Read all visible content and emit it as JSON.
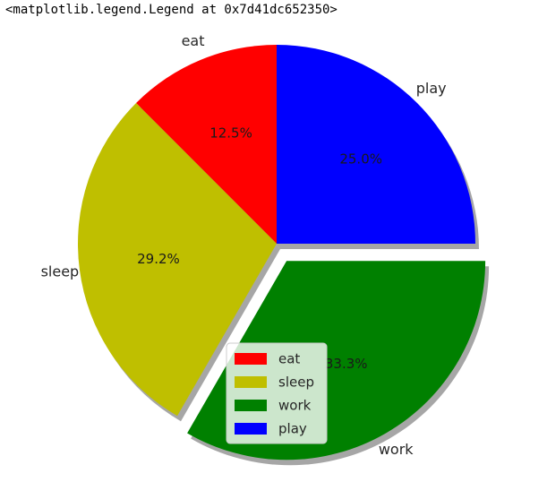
{
  "output_text": "<matplotlib.legend.Legend at 0x7d41dc652350>",
  "chart_data": {
    "type": "pie",
    "categories": [
      "eat",
      "sleep",
      "work",
      "play"
    ],
    "values": [
      3,
      7,
      8,
      6
    ],
    "percent_labels": [
      "12.5%",
      "29.2%",
      "33.3%",
      "25.0%"
    ],
    "colors": [
      "#ff0000",
      "#bfbf00",
      "#008000",
      "#0000ff"
    ],
    "explode": [
      0,
      0,
      0.1,
      0
    ],
    "start_angle_deg": 90,
    "shadow": true,
    "legend": {
      "placement": "lower-center",
      "entries": [
        "eat",
        "sleep",
        "work",
        "play"
      ]
    }
  }
}
